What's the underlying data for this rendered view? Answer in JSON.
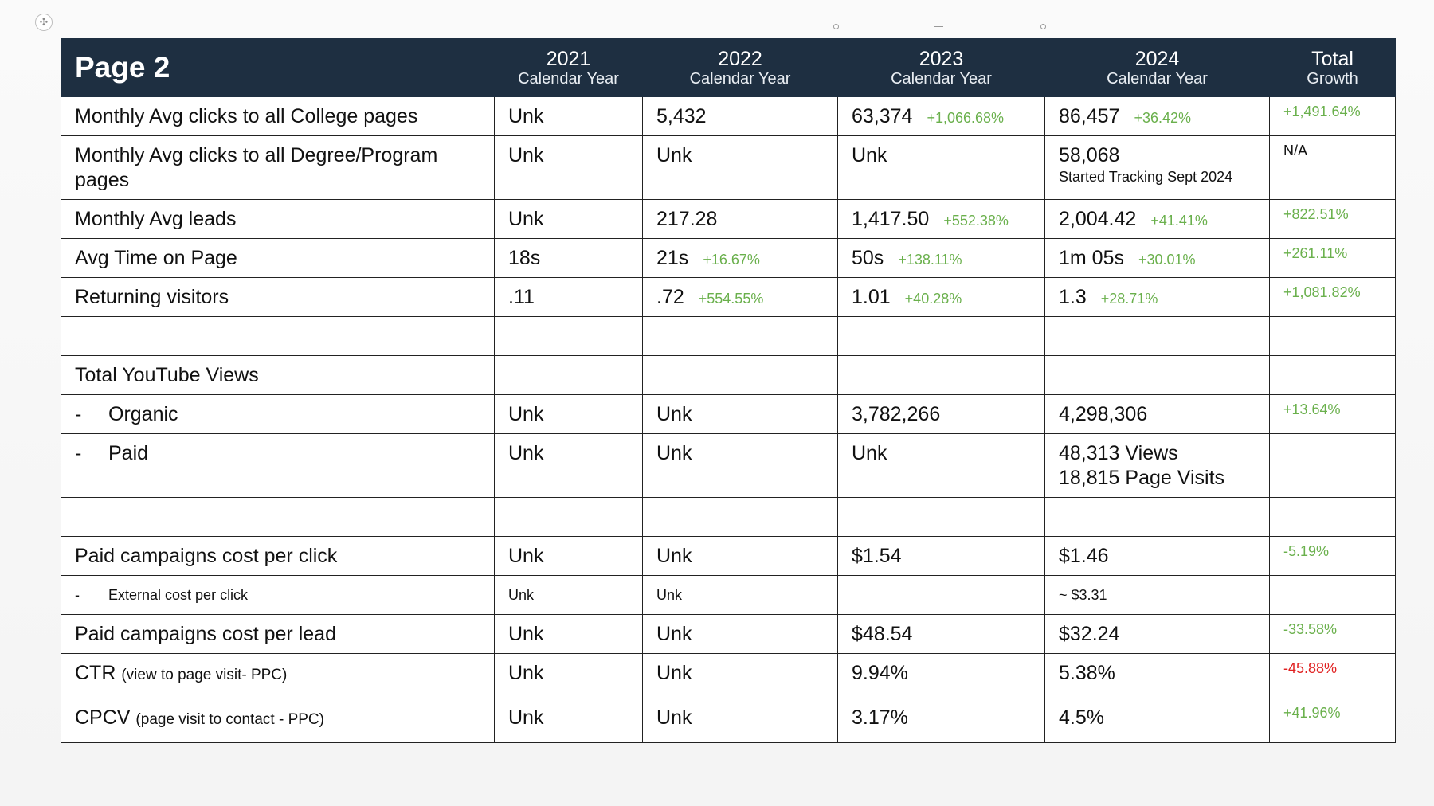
{
  "title": "Page 2",
  "columns": [
    {
      "year": "2021",
      "sub": "Calendar Year"
    },
    {
      "year": "2022",
      "sub": "Calendar Year"
    },
    {
      "year": "2023",
      "sub": "Calendar Year"
    },
    {
      "year": "2024",
      "sub": "Calendar Year"
    },
    {
      "year": "Total",
      "sub": "Growth"
    }
  ],
  "rows": {
    "college": {
      "label": "Monthly Avg clicks to all College pages",
      "y2021": "Unk",
      "y2022": "5,432",
      "y2023": "63,374",
      "y2023_chg": "+1,066.68%",
      "y2024": "86,457",
      "y2024_chg": "+36.42%",
      "total": "+1,491.64%"
    },
    "degree": {
      "label": "Monthly Avg clicks to all Degree/Program pages",
      "y2021": "Unk",
      "y2022": "Unk",
      "y2023": "Unk",
      "y2024": "58,068",
      "y2024_note": "Started Tracking Sept 2024",
      "total": "N/A"
    },
    "leads": {
      "label": "Monthly Avg leads",
      "y2021": "Unk",
      "y2022": "217.28",
      "y2023": "1,417.50",
      "y2023_chg": "+552.38%",
      "y2024": "2,004.42",
      "y2024_chg": "+41.41%",
      "total": "+822.51%"
    },
    "time": {
      "label": "Avg Time on Page",
      "y2021": "18s",
      "y2022": "21s",
      "y2022_chg": "+16.67%",
      "y2023": "50s",
      "y2023_chg": "+138.11%",
      "y2024": "1m 05s",
      "y2024_chg": "+30.01%",
      "total": "+261.11%"
    },
    "returning": {
      "label": "Returning visitors",
      "y2021": ".11",
      "y2022": ".72",
      "y2022_chg": "+554.55%",
      "y2023": "1.01",
      "y2023_chg": "+40.28%",
      "y2024": "1.3",
      "y2024_chg": "+28.71%",
      "total": "+1,081.82%"
    },
    "youtube": {
      "label": "Total YouTube Views"
    },
    "organic": {
      "dash": "-",
      "label": "Organic",
      "y2021": "Unk",
      "y2022": "Unk",
      "y2023": "3,782,266",
      "y2024": "4,298,306",
      "total": "+13.64%"
    },
    "paid": {
      "dash": "-",
      "label": "Paid",
      "y2021": "Unk",
      "y2022": "Unk",
      "y2023": "Unk",
      "y2024_line1": "48,313 Views",
      "y2024_line2": "18,815 Page Visits"
    },
    "cpc": {
      "label": "Paid campaigns cost per click",
      "y2021": "Unk",
      "y2022": "Unk",
      "y2023": "$1.54",
      "y2024": "$1.46",
      "total": "-5.19%"
    },
    "ext_cpc": {
      "dash": "-",
      "label": "External cost per click",
      "y2021": "Unk",
      "y2022": "Unk",
      "y2024": "~ $3.31"
    },
    "cpl": {
      "label": "Paid campaigns cost per lead",
      "y2021": "Unk",
      "y2022": "Unk",
      "y2023": "$48.54",
      "y2024": "$32.24",
      "total": "-33.58%"
    },
    "ctr": {
      "label": "CTR",
      "label_note": "(view to page visit- PPC)",
      "y2021": "Unk",
      "y2022": "Unk",
      "y2023": "9.94%",
      "y2024": "5.38%",
      "total": "-45.88%"
    },
    "cpcv": {
      "label": "CPCV",
      "label_note": "(page visit to contact - PPC)",
      "y2021": "Unk",
      "y2022": "Unk",
      "y2023": "3.17%",
      "y2024": "4.5%",
      "total": "+41.96%"
    }
  }
}
